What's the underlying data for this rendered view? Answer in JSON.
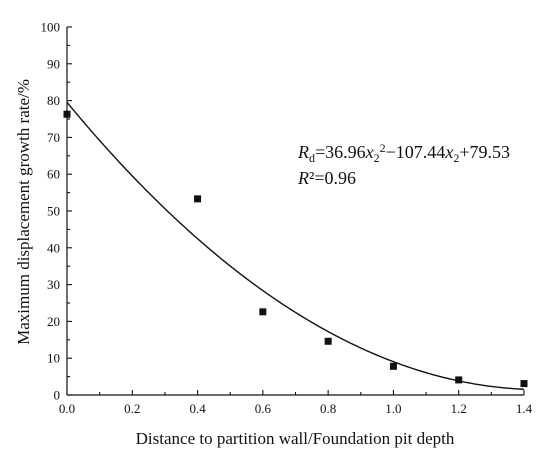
{
  "chart_data": {
    "type": "scatter",
    "title": "",
    "xlabel": "Distance to partition wall/Foundation pit depth",
    "ylabel": "Maximum displacement growth rate/%",
    "xlim": [
      0.0,
      1.4
    ],
    "ylim": [
      0,
      100
    ],
    "xticks": [
      "0.0",
      "0.2",
      "0.4",
      "0.6",
      "0.8",
      "1.0",
      "1.2",
      "1.4"
    ],
    "yticks": [
      "0",
      "10",
      "20",
      "30",
      "40",
      "50",
      "60",
      "70",
      "80",
      "90",
      "100"
    ],
    "grid": false,
    "series": [
      {
        "marker": "square",
        "points": [
          {
            "x": 0.0,
            "y": 76.3
          },
          {
            "x": 0.4,
            "y": 53.3
          },
          {
            "x": 0.6,
            "y": 22.6
          },
          {
            "x": 0.8,
            "y": 14.6
          },
          {
            "x": 1.0,
            "y": 7.8
          },
          {
            "x": 1.2,
            "y": 4.1
          },
          {
            "x": 1.4,
            "y": 3.1
          }
        ]
      }
    ],
    "fit": {
      "type": "quadratic",
      "coefficients": {
        "a": 36.96,
        "b": -107.44,
        "c": 79.53
      },
      "x_range": [
        0.0,
        1.4
      ]
    },
    "annotations": {
      "eq_R": "R",
      "eq_R_sub": "d",
      "eq_part1": "=36.96",
      "eq_x": "x",
      "eq_x_sub": "2",
      "eq_sup2": "2",
      "eq_part2": "−107.44",
      "eq_part3": "+79.53",
      "r2_R": "R",
      "r2_rest": "²=0.96"
    }
  }
}
